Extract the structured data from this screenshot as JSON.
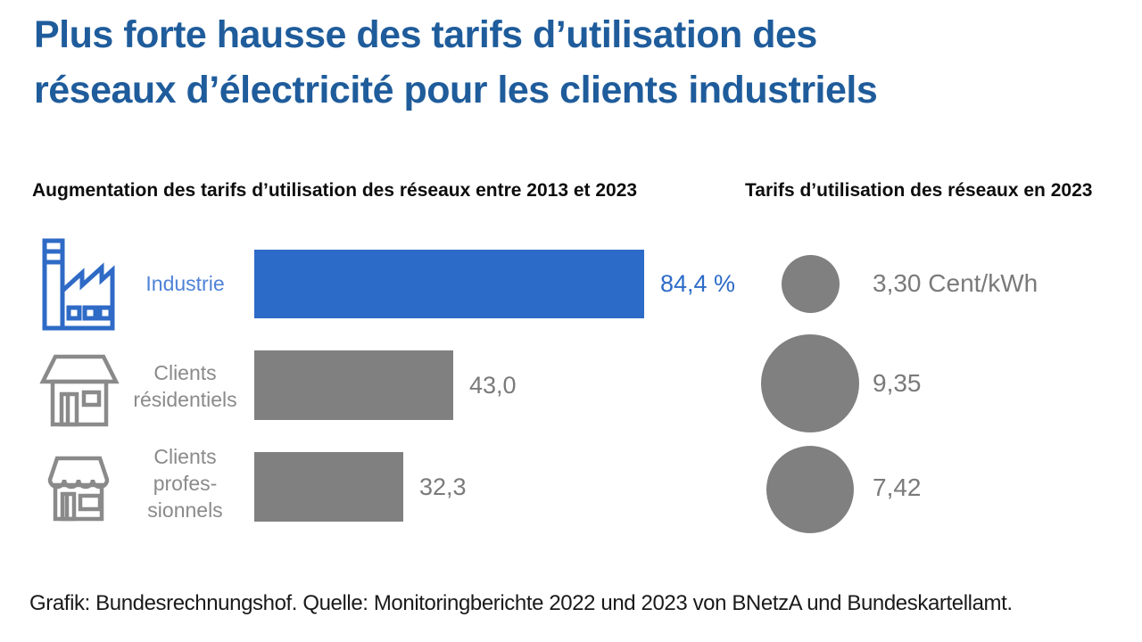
{
  "title": {
    "lines": [
      "Plus forte hausse des tarifs d’utilisation des",
      "réseaux d’électricité pour les clients industriels"
    ]
  },
  "icons": {
    "industry": "factory-icon",
    "residential": "house-icon",
    "business": "shop-icon"
  },
  "colors": {
    "title_blue": "#1f5c9b",
    "accent_blue": "#2d6bc8",
    "label_blue": "#4f82d7",
    "icon_blue": "#2e6ac6",
    "gray": "#808080",
    "text_gray": "#7a7a7a"
  },
  "chart_data": [
    {
      "type": "bar",
      "orientation": "horizontal",
      "title": "Augmentation des tarifs d’utilisation des réseaux entre 2013 et 2023",
      "categories": [
        "Industrie",
        "Clients résidentiels",
        "Clients professionnels"
      ],
      "display_labels": [
        "Industrie",
        "Clients\nrésidentiels",
        "Clients\nprofes-\nsionnels"
      ],
      "values": [
        84.4,
        43.0,
        32.3
      ],
      "value_labels": [
        "84,4 %",
        "43,0",
        "32,3"
      ],
      "unit": "%",
      "bar_colors": [
        "#2d6bc8",
        "#808080",
        "#808080"
      ],
      "axes": "none",
      "grid": false,
      "legend": false
    },
    {
      "type": "scatter",
      "subtype": "proportional-area-bubbles",
      "title": "Tarifs d’utilisation des réseaux en 2023",
      "categories": [
        "Industrie",
        "Clients résidentiels",
        "Clients professionnels"
      ],
      "values": [
        3.3,
        9.35,
        7.42
      ],
      "value_labels": [
        "3,30 Cent/kWh",
        "9,35",
        "7,42"
      ],
      "unit": "Cent/kWh",
      "bubble_color": "#808080",
      "axes": "none",
      "grid": false,
      "legend": false
    }
  ],
  "footer": {
    "text": "Grafik: Bundesrechnungshof. Quelle: Monitoringberichte 2022 und 2023 von BNetzA und Bundeskartellamt."
  }
}
